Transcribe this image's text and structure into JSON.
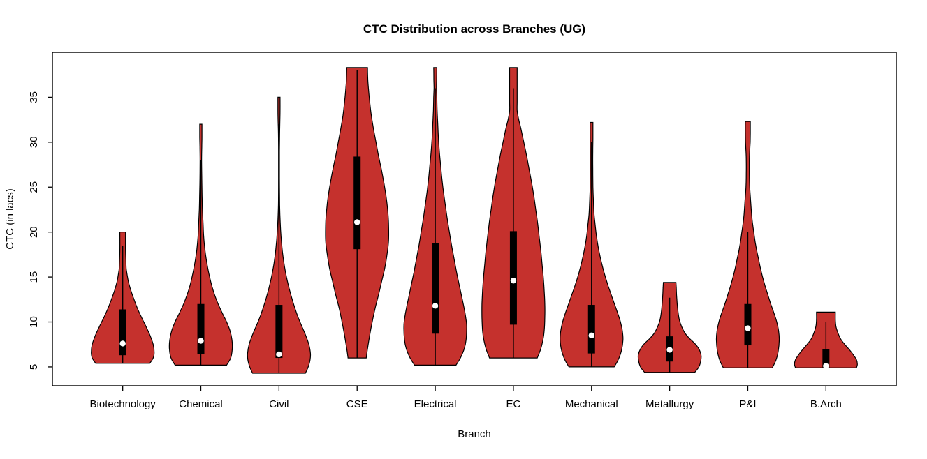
{
  "title": "CTC Distribution across Branches (UG)",
  "x_axis_label": "Branch",
  "y_axis_label": "CTC (in lacs)",
  "chart_data": {
    "type": "violin",
    "title": "CTC Distribution across Branches (UG)",
    "xlabel": "Branch",
    "ylabel": "CTC (in lacs)",
    "categories": [
      "Biotechnology",
      "Chemical",
      "Civil",
      "CSE",
      "Electrical",
      "EC",
      "Mechanical",
      "Metallurgy",
      "P&I",
      "B.Arch"
    ],
    "y_ticks": [
      5,
      10,
      15,
      20,
      25,
      30,
      35
    ],
    "ylim": [
      2.9,
      40
    ],
    "grid": false,
    "fill_color": "#C5312D",
    "outline_color": "#000000",
    "box_color": "#000000",
    "median_dot_color": "#FFFFFF",
    "background_color": "#FFFFFF",
    "violins": [
      {
        "branch": "Biotechnology",
        "min": 5.4,
        "max": 20,
        "q1": 6.3,
        "median": 7.6,
        "q3": 11.4,
        "whisker_low": 5.4,
        "whisker_high": 18.5,
        "profile": [
          [
            5.4,
            0.86
          ],
          [
            6.0,
            0.97
          ],
          [
            6.6,
            1.0
          ],
          [
            7.5,
            0.97
          ],
          [
            8.5,
            0.87
          ],
          [
            9.5,
            0.74
          ],
          [
            10.5,
            0.6
          ],
          [
            11.5,
            0.47
          ],
          [
            12.5,
            0.36
          ],
          [
            13.5,
            0.26
          ],
          [
            14.5,
            0.18
          ],
          [
            15.5,
            0.13
          ],
          [
            16.0,
            0.11
          ],
          [
            17.0,
            0.1
          ],
          [
            18.0,
            0.09
          ],
          [
            20.0,
            0.09
          ]
        ]
      },
      {
        "branch": "Chemical",
        "min": 5.2,
        "max": 32,
        "q1": 6.4,
        "median": 7.9,
        "q3": 12.0,
        "whisker_low": 5.2,
        "whisker_high": 28,
        "profile": [
          [
            5.2,
            0.82
          ],
          [
            6.0,
            0.95
          ],
          [
            7.0,
            1.0
          ],
          [
            8.0,
            0.99
          ],
          [
            9.0,
            0.93
          ],
          [
            10.0,
            0.82
          ],
          [
            11.0,
            0.68
          ],
          [
            12.0,
            0.55
          ],
          [
            13.0,
            0.44
          ],
          [
            14.0,
            0.35
          ],
          [
            15.0,
            0.28
          ],
          [
            16.0,
            0.22
          ],
          [
            17.0,
            0.17
          ],
          [
            18.0,
            0.13
          ],
          [
            19.5,
            0.09
          ],
          [
            21.0,
            0.07
          ],
          [
            22.5,
            0.05
          ],
          [
            24.0,
            0.04
          ],
          [
            26.0,
            0.03
          ],
          [
            28.0,
            0.025
          ],
          [
            29.5,
            0.03
          ],
          [
            30.5,
            0.035
          ],
          [
            32.0,
            0.035
          ]
        ]
      },
      {
        "branch": "Civil",
        "min": 4.3,
        "max": 35,
        "q1": 6.0,
        "median": 6.4,
        "q3": 11.9,
        "whisker_low": 4.3,
        "whisker_high": 32,
        "profile": [
          [
            4.3,
            0.84
          ],
          [
            5.0,
            0.93
          ],
          [
            5.8,
            0.99
          ],
          [
            6.5,
            1.0
          ],
          [
            7.5,
            0.95
          ],
          [
            8.5,
            0.85
          ],
          [
            9.5,
            0.73
          ],
          [
            10.5,
            0.61
          ],
          [
            11.5,
            0.51
          ],
          [
            12.5,
            0.42
          ],
          [
            13.5,
            0.34
          ],
          [
            14.5,
            0.27
          ],
          [
            15.5,
            0.21
          ],
          [
            16.5,
            0.16
          ],
          [
            17.5,
            0.12
          ],
          [
            18.5,
            0.09
          ],
          [
            19.5,
            0.065
          ],
          [
            21.0,
            0.04
          ],
          [
            23.0,
            0.02
          ],
          [
            26.0,
            0.015
          ],
          [
            29.0,
            0.015
          ],
          [
            31.0,
            0.02
          ],
          [
            32.5,
            0.03
          ],
          [
            33.5,
            0.035
          ],
          [
            35.0,
            0.035
          ]
        ]
      },
      {
        "branch": "CSE",
        "min": 6.0,
        "max": 38.3,
        "q1": 18.1,
        "median": 21.1,
        "q3": 28.4,
        "whisker_low": 6.0,
        "whisker_high": 38,
        "profile": [
          [
            6.0,
            0.29
          ],
          [
            7.0,
            0.33
          ],
          [
            8.5,
            0.4
          ],
          [
            10.0,
            0.48
          ],
          [
            11.5,
            0.57
          ],
          [
            13.0,
            0.68
          ],
          [
            14.5,
            0.78
          ],
          [
            16.0,
            0.88
          ],
          [
            17.5,
            0.95
          ],
          [
            19.0,
            1.0
          ],
          [
            21.0,
            1.0
          ],
          [
            22.5,
            0.97
          ],
          [
            24.0,
            0.92
          ],
          [
            25.5,
            0.85
          ],
          [
            27.0,
            0.77
          ],
          [
            28.5,
            0.68
          ],
          [
            30.0,
            0.6
          ],
          [
            31.5,
            0.52
          ],
          [
            33.0,
            0.45
          ],
          [
            34.5,
            0.4
          ],
          [
            36.0,
            0.36
          ],
          [
            37.0,
            0.34
          ],
          [
            38.3,
            0.33
          ]
        ]
      },
      {
        "branch": "Electrical",
        "min": 5.2,
        "max": 38.3,
        "q1": 8.7,
        "median": 11.8,
        "q3": 18.8,
        "whisker_low": 5.2,
        "whisker_high": 36,
        "profile": [
          [
            5.2,
            0.66
          ],
          [
            6.0,
            0.8
          ],
          [
            7.0,
            0.92
          ],
          [
            8.0,
            0.98
          ],
          [
            9.5,
            1.0
          ],
          [
            10.5,
            0.97
          ],
          [
            11.5,
            0.92
          ],
          [
            12.5,
            0.86
          ],
          [
            14.0,
            0.77
          ],
          [
            15.5,
            0.68
          ],
          [
            17.0,
            0.6
          ],
          [
            18.5,
            0.52
          ],
          [
            20.0,
            0.45
          ],
          [
            21.5,
            0.38
          ],
          [
            23.0,
            0.32
          ],
          [
            24.5,
            0.26
          ],
          [
            26.0,
            0.21
          ],
          [
            27.5,
            0.17
          ],
          [
            29.0,
            0.13
          ],
          [
            30.5,
            0.1
          ],
          [
            32.0,
            0.08
          ],
          [
            33.5,
            0.06
          ],
          [
            35.0,
            0.05
          ],
          [
            36.0,
            0.04
          ],
          [
            37.0,
            0.045
          ],
          [
            38.3,
            0.05
          ]
        ]
      },
      {
        "branch": "EC",
        "min": 6.0,
        "max": 38.3,
        "q1": 9.7,
        "median": 14.6,
        "q3": 20.1,
        "whisker_low": 6.0,
        "whisker_high": 36,
        "profile": [
          [
            6.0,
            0.76
          ],
          [
            7.0,
            0.87
          ],
          [
            8.0,
            0.94
          ],
          [
            9.0,
            0.98
          ],
          [
            10.5,
            1.0
          ],
          [
            12.0,
            1.0
          ],
          [
            13.5,
            0.98
          ],
          [
            15.0,
            0.95
          ],
          [
            16.5,
            0.91
          ],
          [
            18.0,
            0.87
          ],
          [
            19.5,
            0.82
          ],
          [
            21.0,
            0.77
          ],
          [
            22.5,
            0.71
          ],
          [
            24.0,
            0.65
          ],
          [
            25.5,
            0.58
          ],
          [
            27.0,
            0.5
          ],
          [
            28.5,
            0.42
          ],
          [
            30.0,
            0.33
          ],
          [
            31.5,
            0.24
          ],
          [
            32.5,
            0.17
          ],
          [
            33.5,
            0.12
          ],
          [
            34.5,
            0.12
          ],
          [
            36.0,
            0.12
          ],
          [
            38.3,
            0.12
          ]
        ]
      },
      {
        "branch": "Mechanical",
        "min": 5.0,
        "max": 32.2,
        "q1": 6.5,
        "median": 8.5,
        "q3": 11.9,
        "whisker_low": 5.0,
        "whisker_high": 30,
        "profile": [
          [
            5.0,
            0.72
          ],
          [
            5.8,
            0.85
          ],
          [
            6.8,
            0.95
          ],
          [
            8.0,
            1.0
          ],
          [
            9.0,
            0.98
          ],
          [
            10.0,
            0.92
          ],
          [
            11.0,
            0.83
          ],
          [
            12.0,
            0.73
          ],
          [
            13.0,
            0.63
          ],
          [
            14.0,
            0.53
          ],
          [
            15.0,
            0.44
          ],
          [
            16.0,
            0.36
          ],
          [
            17.0,
            0.29
          ],
          [
            18.0,
            0.23
          ],
          [
            19.0,
            0.18
          ],
          [
            20.0,
            0.14
          ],
          [
            21.0,
            0.11
          ],
          [
            22.0,
            0.08
          ],
          [
            23.5,
            0.06
          ],
          [
            25.0,
            0.045
          ],
          [
            27.0,
            0.04
          ],
          [
            29.0,
            0.04
          ],
          [
            30.5,
            0.045
          ],
          [
            32.2,
            0.045
          ]
        ]
      },
      {
        "branch": "Metallurgy",
        "min": 4.4,
        "max": 14.4,
        "q1": 5.6,
        "median": 6.9,
        "q3": 8.4,
        "whisker_low": 4.4,
        "whisker_high": 12.7,
        "profile": [
          [
            4.4,
            0.8
          ],
          [
            5.0,
            0.93
          ],
          [
            5.7,
            0.99
          ],
          [
            6.3,
            1.0
          ],
          [
            7.0,
            0.93
          ],
          [
            7.6,
            0.8
          ],
          [
            8.2,
            0.62
          ],
          [
            8.8,
            0.48
          ],
          [
            9.5,
            0.38
          ],
          [
            10.2,
            0.31
          ],
          [
            11.0,
            0.27
          ],
          [
            12.0,
            0.24
          ],
          [
            13.0,
            0.22
          ],
          [
            13.8,
            0.21
          ],
          [
            14.4,
            0.2
          ]
        ]
      },
      {
        "branch": "P&I",
        "min": 4.9,
        "max": 32.3,
        "q1": 7.4,
        "median": 9.3,
        "q3": 12.0,
        "whisker_low": 4.9,
        "whisker_high": 20,
        "profile": [
          [
            4.9,
            0.78
          ],
          [
            5.8,
            0.9
          ],
          [
            6.8,
            0.97
          ],
          [
            8.0,
            1.0
          ],
          [
            9.0,
            0.98
          ],
          [
            10.0,
            0.92
          ],
          [
            11.0,
            0.83
          ],
          [
            12.0,
            0.73
          ],
          [
            13.0,
            0.64
          ],
          [
            14.0,
            0.55
          ],
          [
            15.0,
            0.47
          ],
          [
            16.0,
            0.4
          ],
          [
            17.0,
            0.34
          ],
          [
            18.0,
            0.28
          ],
          [
            19.0,
            0.23
          ],
          [
            20.0,
            0.19
          ],
          [
            21.0,
            0.15
          ],
          [
            22.0,
            0.12
          ],
          [
            23.5,
            0.09
          ],
          [
            25.0,
            0.06
          ],
          [
            26.5,
            0.05
          ],
          [
            28.0,
            0.05
          ],
          [
            29.0,
            0.06
          ],
          [
            30.0,
            0.075
          ],
          [
            31.0,
            0.08
          ],
          [
            32.3,
            0.08
          ]
        ]
      },
      {
        "branch": "B.Arch",
        "min": 4.9,
        "max": 11.1,
        "q1": 4.9,
        "median": 5.1,
        "q3": 7.0,
        "whisker_low": 4.9,
        "whisker_high": 10,
        "profile": [
          [
            4.9,
            0.97
          ],
          [
            5.3,
            1.0
          ],
          [
            5.8,
            0.97
          ],
          [
            6.3,
            0.88
          ],
          [
            6.9,
            0.75
          ],
          [
            7.5,
            0.6
          ],
          [
            8.1,
            0.47
          ],
          [
            8.8,
            0.38
          ],
          [
            9.5,
            0.32
          ],
          [
            10.2,
            0.3
          ],
          [
            11.1,
            0.3
          ]
        ]
      }
    ]
  }
}
